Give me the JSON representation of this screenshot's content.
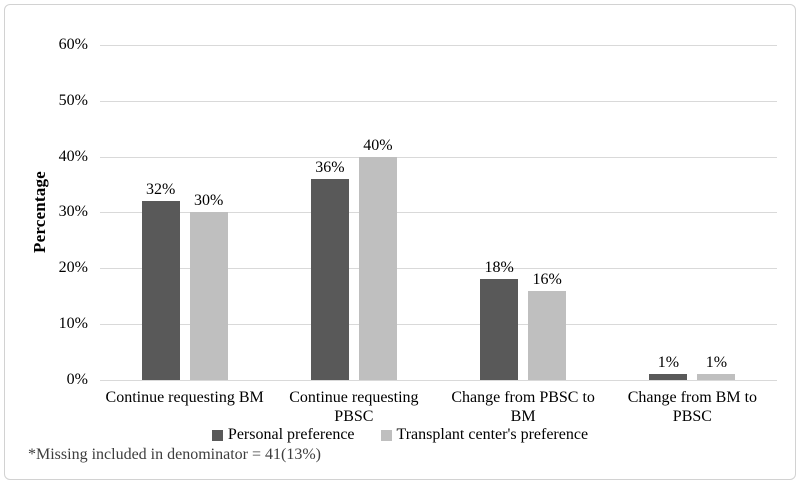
{
  "chart_data": {
    "type": "bar",
    "title": "",
    "categories": [
      "Continue requesting BM",
      "Continue requesting PBSC",
      "Change from PBSC to BM",
      "Change from BM to PBSC"
    ],
    "category_label_lines": [
      [
        "Continue requesting BM"
      ],
      [
        "Continue requesting",
        "PBSC"
      ],
      [
        "Change from PBSC to",
        "BM"
      ],
      [
        "Change from BM to",
        "PBSC"
      ]
    ],
    "series": [
      {
        "name": "Personal preference",
        "color": "#595959",
        "values": [
          32,
          36,
          18,
          1
        ],
        "labels": [
          "32%",
          "36%",
          "18%",
          "1%"
        ]
      },
      {
        "name": "Transplant center's preference",
        "color": "#bfbfbf",
        "values": [
          30,
          40,
          16,
          1
        ],
        "labels": [
          "30%",
          "40%",
          "16%",
          "1%"
        ]
      }
    ],
    "xlabel": "",
    "ylabel": "Percentage",
    "ylim": [
      0,
      60
    ],
    "yticks": [
      0,
      10,
      20,
      30,
      40,
      50,
      60
    ],
    "ytick_labels": [
      "0%",
      "10%",
      "20%",
      "30%",
      "40%",
      "50%",
      "60%"
    ],
    "grid": "horizontal",
    "legend_position": "bottom",
    "footnote": "*Missing included in denominator = 41(13%)",
    "colors": {
      "grid": "#d9d9d9",
      "axis_line": "#d9d9d9",
      "text": "#000000",
      "footnote": "#3d3d3d",
      "frame_border": "#d2d2d2",
      "background": "#ffffff"
    }
  }
}
